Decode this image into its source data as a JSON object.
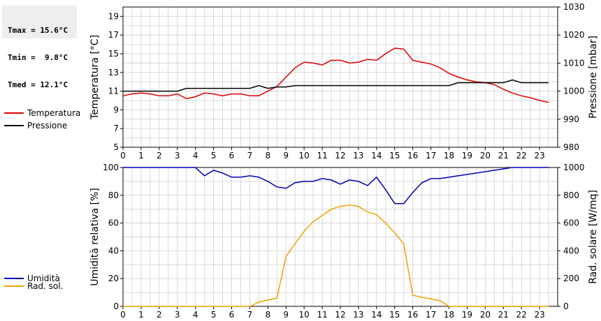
{
  "stats": {
    "tmax": "Tmax = 15.6°C",
    "tmin": "Tmin =  9.8°C",
    "tmed": "Tmed = 12.1°C"
  },
  "chart_data": [
    {
      "type": "line",
      "ylabel": "Temperatura [°C]",
      "ylabel_right": "Pressione [mbar]",
      "xlim": [
        0,
        24
      ],
      "ylim": [
        5,
        20
      ],
      "ylim_right": [
        980,
        1030
      ],
      "x_ticks": [
        0,
        1,
        2,
        3,
        4,
        5,
        6,
        7,
        8,
        9,
        10,
        11,
        12,
        13,
        14,
        15,
        16,
        17,
        18,
        19,
        20,
        21,
        22,
        23
      ],
      "y_ticks": [
        5,
        7,
        9,
        11,
        13,
        15,
        17,
        19
      ],
      "y_ticks_right": [
        980,
        990,
        1000,
        1010,
        1020,
        1030
      ],
      "grid": true,
      "legend": "left",
      "series": [
        {
          "name": "Temperatura",
          "color": "#dd0000",
          "axis": "left",
          "x": [
            0,
            0.5,
            1,
            1.5,
            2,
            2.5,
            3,
            3.5,
            4,
            4.5,
            5,
            5.5,
            6,
            6.5,
            7,
            7.5,
            8,
            8.5,
            9,
            9.5,
            10,
            10.5,
            11,
            11.5,
            12,
            12.5,
            13,
            13.5,
            14,
            14.5,
            15,
            15.5,
            16,
            16.5,
            17,
            17.5,
            18,
            18.5,
            19,
            19.5,
            20,
            20.5,
            21,
            21.5,
            22,
            22.5,
            23,
            23.5
          ],
          "values": [
            10.5,
            10.7,
            10.8,
            10.7,
            10.5,
            10.5,
            10.7,
            10.2,
            10.4,
            10.8,
            10.7,
            10.5,
            10.7,
            10.7,
            10.5,
            10.5,
            11.0,
            11.5,
            12.5,
            13.5,
            14.1,
            14.0,
            13.8,
            14.3,
            14.3,
            14.0,
            14.1,
            14.4,
            14.3,
            15.0,
            15.6,
            15.5,
            14.3,
            14.1,
            13.9,
            13.5,
            12.9,
            12.5,
            12.2,
            12.0,
            11.9,
            11.7,
            11.2,
            10.8,
            10.5,
            10.3,
            10.0,
            9.8
          ]
        },
        {
          "name": "Pressione",
          "color": "#000000",
          "axis": "right",
          "x": [
            0,
            0.5,
            1,
            1.5,
            2,
            2.5,
            3,
            3.5,
            4,
            4.5,
            5,
            5.5,
            6,
            6.5,
            7,
            7.5,
            8,
            8.5,
            9,
            9.5,
            10,
            10.5,
            11,
            11.5,
            12,
            12.5,
            13,
            13.5,
            14,
            14.5,
            15,
            15.5,
            16,
            16.5,
            17,
            17.5,
            18,
            18.5,
            19,
            19.5,
            20,
            20.5,
            21,
            21.5,
            22,
            22.5,
            23,
            23.5
          ],
          "values": [
            1000,
            1000,
            1000,
            1000,
            1000,
            1000,
            1000,
            1001,
            1001,
            1001,
            1001,
            1001,
            1001,
            1001,
            1001,
            1002,
            1001,
            1001.5,
            1001.5,
            1002,
            1002,
            1002,
            1002,
            1002,
            1002,
            1002,
            1002,
            1002,
            1002,
            1002,
            1002,
            1002,
            1002,
            1002,
            1002,
            1002,
            1002,
            1003,
            1003,
            1003,
            1003,
            1003,
            1003,
            1004,
            1003,
            1003,
            1003,
            1003
          ]
        }
      ]
    },
    {
      "type": "line",
      "ylabel": "Umidità relativa [%]",
      "ylabel_right": "Rad. solare [W/mq]",
      "xlim": [
        0,
        24
      ],
      "ylim": [
        0,
        100
      ],
      "ylim_right": [
        0,
        1000
      ],
      "x_ticks": [
        0,
        1,
        2,
        3,
        4,
        5,
        6,
        7,
        8,
        9,
        10,
        11,
        12,
        13,
        14,
        15,
        16,
        17,
        18,
        19,
        20,
        21,
        22,
        23
      ],
      "y_ticks": [
        0,
        20,
        40,
        60,
        80,
        100
      ],
      "y_ticks_right": [
        0,
        200,
        400,
        600,
        800,
        1000
      ],
      "grid": true,
      "legend": "left",
      "series": [
        {
          "name": "Umidità",
          "color": "#0000bb",
          "axis": "left",
          "x": [
            0,
            0.5,
            1,
            1.5,
            2,
            2.5,
            3,
            3.5,
            4,
            4.5,
            5,
            5.5,
            6,
            6.5,
            7,
            7.5,
            8,
            8.5,
            9,
            9.5,
            10,
            10.5,
            11,
            11.5,
            12,
            12.5,
            13,
            13.5,
            14,
            14.5,
            15,
            15.5,
            16,
            16.5,
            17,
            17.5,
            18,
            18.5,
            19,
            19.5,
            20,
            20.5,
            21,
            21.5,
            22,
            22.5,
            23,
            23.5
          ],
          "values": [
            100,
            100,
            100,
            100,
            100,
            100,
            100,
            100,
            100,
            94,
            98,
            96,
            93,
            93,
            94,
            93,
            90,
            86,
            85,
            89,
            90,
            90,
            92,
            91,
            88,
            91,
            90,
            87,
            93,
            84,
            74,
            74,
            82,
            89,
            92,
            92,
            93,
            94,
            95,
            96,
            97,
            98,
            99,
            100,
            100,
            100,
            100,
            100
          ]
        },
        {
          "name": "Rad. sol.",
          "color": "#f0a000",
          "axis": "right",
          "x": [
            0,
            0.5,
            1,
            1.5,
            2,
            2.5,
            3,
            3.5,
            4,
            4.5,
            5,
            5.5,
            6,
            6.5,
            7,
            7.5,
            8,
            8.5,
            9,
            9.5,
            10,
            10.5,
            11,
            11.5,
            12,
            12.5,
            13,
            13.5,
            14,
            14.5,
            15,
            15.5,
            16,
            16.5,
            17,
            17.5,
            18,
            18.5,
            19,
            19.5,
            20,
            20.5,
            21,
            21.5,
            22,
            22.5,
            23,
            23.5
          ],
          "values": [
            0,
            0,
            0,
            0,
            0,
            0,
            0,
            0,
            0,
            0,
            0,
            0,
            0,
            0,
            0,
            30,
            45,
            60,
            360,
            450,
            540,
            610,
            655,
            700,
            720,
            730,
            720,
            680,
            660,
            600,
            530,
            450,
            80,
            65,
            55,
            40,
            0,
            0,
            0,
            0,
            0,
            0,
            0,
            0,
            0,
            0,
            0,
            0
          ]
        }
      ]
    }
  ]
}
